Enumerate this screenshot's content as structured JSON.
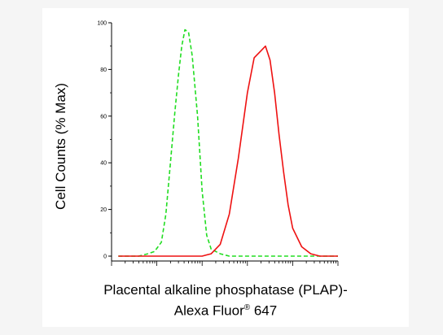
{
  "chart_data": {
    "type": "line",
    "ylabel": "Cell Counts (% Max)",
    "xlabel_line1": "Placental alkaline phosphatase (PLAP)-",
    "xlabel_line2": "Alexa Fluor",
    "xlabel_registered": "®",
    "xlabel_line2_end": " 647",
    "ylim": [
      0,
      100
    ],
    "xlim": [
      0,
      5
    ],
    "x_scale": "log",
    "yticks": [
      "0",
      "20",
      "40",
      "60",
      "80",
      "100"
    ],
    "grid": false,
    "legend": "none",
    "series": [
      {
        "style": "dashed",
        "color": "#22dd22",
        "x": [
          0.15,
          0.6,
          0.8,
          0.95,
          1.1,
          1.2,
          1.3,
          1.4,
          1.48,
          1.55,
          1.62,
          1.7,
          1.78,
          1.9,
          2.0,
          2.1,
          2.2,
          2.4,
          2.6,
          3.0,
          4.0,
          5.0
        ],
        "y": [
          0,
          0,
          1,
          2,
          6,
          18,
          40,
          62,
          78,
          90,
          97,
          96,
          86,
          60,
          28,
          9,
          3,
          1,
          0,
          0,
          0,
          0
        ]
      },
      {
        "style": "solid",
        "color": "#ee1111",
        "x": [
          0.15,
          1.5,
          2.0,
          2.2,
          2.4,
          2.6,
          2.8,
          3.0,
          3.15,
          3.3,
          3.4,
          3.5,
          3.6,
          3.7,
          3.8,
          3.9,
          4.0,
          4.2,
          4.4,
          4.6,
          4.8,
          5.0
        ],
        "y": [
          0,
          0,
          0,
          1,
          5,
          18,
          42,
          70,
          85,
          88,
          90,
          84,
          70,
          52,
          36,
          22,
          12,
          4,
          1,
          0,
          0,
          0
        ]
      }
    ]
  }
}
